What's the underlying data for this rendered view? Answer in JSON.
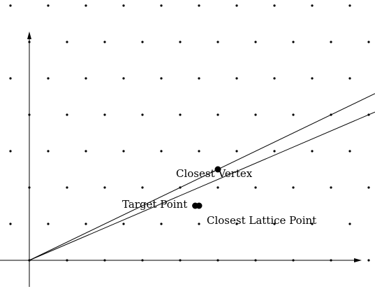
{
  "labels": {
    "closest_vertex": "Closest Vertex",
    "target_point": "Target Point",
    "closest_lattice_point": "Closest Lattice Point"
  },
  "lattice": {
    "basis_a": [
      1,
      0
    ],
    "basis_b": [
      0.5,
      1
    ],
    "rows_below_axis": 1,
    "rows_above_axis": 13
  },
  "points": {
    "target": [
      4.4,
      1.5
    ],
    "closest_lattice": [
      4.5,
      1.5
    ],
    "closest_vertex": [
      5,
      2.5
    ]
  },
  "rays": {
    "upper_through": [
      5,
      2.5
    ],
    "lower_through": [
      9,
      4
    ]
  },
  "colors": {
    "ink": "#000000",
    "background": "#ffffff"
  }
}
